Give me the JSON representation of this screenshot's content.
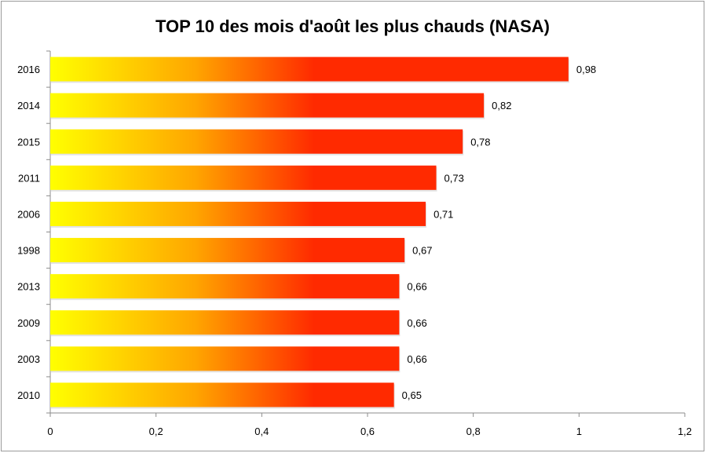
{
  "chart_data": {
    "type": "bar",
    "orientation": "horizontal",
    "title": "TOP 10 des mois d'août les plus chauds (NASA)",
    "categories": [
      "2016",
      "2014",
      "2015",
      "2011",
      "2006",
      "1998",
      "2013",
      "2009",
      "2003",
      "2010"
    ],
    "values": [
      0.98,
      0.82,
      0.78,
      0.73,
      0.71,
      0.67,
      0.66,
      0.66,
      0.66,
      0.65
    ],
    "data_labels": [
      "0,98",
      "0,82",
      "0,78",
      "0,73",
      "0,71",
      "0,67",
      "0,66",
      "0,66",
      "0,66",
      "0,65"
    ],
    "xlim": [
      0,
      1.2
    ],
    "xticks": [
      0,
      0.2,
      0.4,
      0.6,
      0.8,
      1,
      1.2
    ],
    "xtick_labels": [
      "0",
      "0,2",
      "0,4",
      "0,6",
      "0,8",
      "1",
      "1,2"
    ],
    "xlabel": "",
    "ylabel": "",
    "grid": false,
    "legend": "none",
    "colors": {
      "gradient_start": "#ffff00",
      "gradient_mid": "#ffa500",
      "gradient_end": "#ff2a00"
    }
  }
}
